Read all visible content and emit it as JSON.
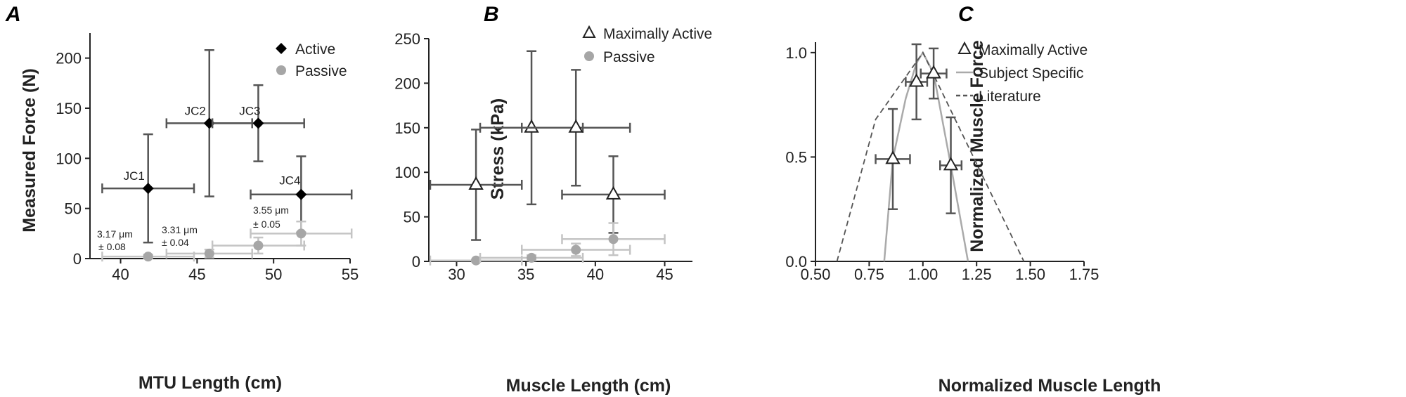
{
  "colors": {
    "active": "#333333",
    "passive": "#a6a6a6",
    "passive_light": "#c4c4c4",
    "axis": "#222222",
    "curve": "#aaaaaa",
    "literature": "#555555"
  },
  "chart_data": [
    {
      "panel": "A",
      "type": "scatter",
      "xlabel": "MTU Length (cm)",
      "ylabel": "Measured Force (N)",
      "xlim": [
        38,
        55
      ],
      "ylim": [
        0,
        225
      ],
      "xticks": [
        "40",
        "45",
        "50",
        "55"
      ],
      "yticks": [
        "0",
        "50",
        "100",
        "150",
        "200"
      ],
      "legend": {
        "position": "top-right",
        "entries": [
          "Active",
          "Passive"
        ]
      },
      "series": [
        {
          "name": "Active",
          "marker": "diamond",
          "points": [
            {
              "label": "JC1",
              "x": 41.8,
              "y": 70,
              "xerr": 3.0,
              "yerr": 54
            },
            {
              "label": "JC2",
              "x": 45.8,
              "y": 135,
              "xerr": 2.8,
              "yerr": 73
            },
            {
              "label": "JC3",
              "x": 49.0,
              "y": 135,
              "xerr": 3.0,
              "yerr": 38
            },
            {
              "label": "JC4",
              "x": 51.8,
              "y": 64,
              "xerr": 3.3,
              "yerr": 38
            }
          ]
        },
        {
          "name": "Passive",
          "marker": "circle",
          "points": [
            {
              "x": 41.8,
              "y": 2,
              "xerr": 3.0,
              "yerr": 2
            },
            {
              "x": 45.8,
              "y": 5,
              "xerr": 2.8,
              "yerr": 4
            },
            {
              "x": 49.0,
              "y": 13,
              "xerr": 3.0,
              "yerr": 8
            },
            {
              "x": 51.8,
              "y": 25,
              "xerr": 3.3,
              "yerr": 12
            }
          ]
        }
      ],
      "annotations": [
        {
          "line1": "3.17 μm",
          "line2": "± 0.08"
        },
        {
          "line1": "3.31 μm",
          "line2": "± 0.04"
        },
        {
          "line1": "3.55 μm",
          "line2": "± 0.05"
        }
      ]
    },
    {
      "panel": "B",
      "type": "scatter",
      "xlabel": "Muscle Length (cm)",
      "ylabel": "Stress (kPa)",
      "xlim": [
        28,
        47
      ],
      "ylim": [
        0,
        250
      ],
      "xticks": [
        "30",
        "35",
        "40",
        "45"
      ],
      "yticks": [
        "0",
        "50",
        "100",
        "150",
        "200",
        "250"
      ],
      "legend": {
        "position": "top-right",
        "entries": [
          "Maximally Active",
          "Passive"
        ]
      },
      "series": [
        {
          "name": "Maximally Active",
          "marker": "triangle",
          "points": [
            {
              "x": 31.4,
              "y": 86,
              "xerr": 3.3,
              "yerr": 62
            },
            {
              "x": 35.4,
              "y": 150,
              "xerr": 3.7,
              "yerr": 86
            },
            {
              "x": 38.6,
              "y": 150,
              "xerr": 3.9,
              "yerr": 65
            },
            {
              "x": 41.3,
              "y": 75,
              "xerr": 3.7,
              "yerr": 43
            }
          ]
        },
        {
          "name": "Passive",
          "marker": "circle",
          "points": [
            {
              "x": 31.4,
              "y": 1,
              "xerr": 3.3,
              "yerr": 1
            },
            {
              "x": 35.4,
              "y": 4,
              "xerr": 3.7,
              "yerr": 3
            },
            {
              "x": 38.6,
              "y": 13,
              "xerr": 3.9,
              "yerr": 7
            },
            {
              "x": 41.3,
              "y": 25,
              "xerr": 3.7,
              "yerr": 18
            }
          ]
        }
      ]
    },
    {
      "panel": "C",
      "type": "scatter",
      "xlabel": "Normalized Muscle Length",
      "ylabel": "Normalized Muscle Force",
      "xlim": [
        0.5,
        1.75
      ],
      "ylim": [
        0,
        1.05
      ],
      "xticks": [
        "0.50",
        "0.75",
        "1.00",
        "1.25",
        "1.50",
        "1.75"
      ],
      "yticks": [
        "0.0",
        "0.5",
        "1.0"
      ],
      "legend": {
        "position": "top-right",
        "entries": [
          "Maximally Active",
          "Subject Specific",
          "Literature"
        ]
      },
      "series": [
        {
          "name": "Maximally Active",
          "marker": "triangle",
          "points": [
            {
              "x": 0.86,
              "y": 0.49,
              "xerr": 0.08,
              "yerr": 0.24
            },
            {
              "x": 0.97,
              "y": 0.86,
              "xerr": 0.05,
              "yerr": 0.18
            },
            {
              "x": 1.05,
              "y": 0.9,
              "xerr": 0.06,
              "yerr": 0.12
            },
            {
              "x": 1.13,
              "y": 0.46,
              "xerr": 0.05,
              "yerr": 0.23
            }
          ]
        },
        {
          "name": "Subject Specific",
          "line": "solid",
          "x": [
            0.82,
            0.86,
            0.92,
            0.97,
            1.0,
            1.05,
            1.13,
            1.21
          ],
          "y": [
            0.0,
            0.49,
            0.78,
            0.95,
            1.0,
            0.9,
            0.46,
            0.0
          ]
        },
        {
          "name": "Literature",
          "line": "dashed",
          "x": [
            0.6,
            0.78,
            1.0,
            1.47
          ],
          "y": [
            0.0,
            0.68,
            1.0,
            0.0
          ]
        }
      ]
    }
  ]
}
